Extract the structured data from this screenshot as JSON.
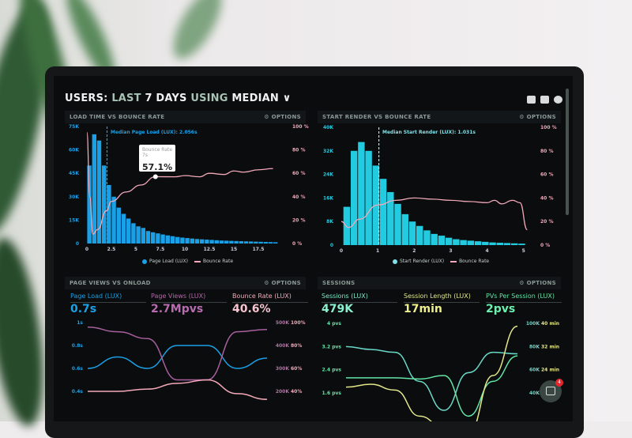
{
  "header": {
    "title_a": "USERS:",
    "title_b": "LAST",
    "title_c": "7 DAYS",
    "title_d": "USING",
    "title_e": "MEDIAN",
    "chevron": "chevron-down-icon",
    "icons": [
      "monitor-icon",
      "share-icon",
      "help-icon"
    ]
  },
  "colors": {
    "blue": "#1aa0e6",
    "cyan": "#23cbe0",
    "pink": "#f3a9b9",
    "purple": "#a8609e",
    "green": "#62e4a6",
    "yellow": "#e4e68a",
    "teal": "#6ad8c6"
  },
  "panels": [
    {
      "title": "LOAD TIME VS BOUNCE RATE",
      "options": "OPTIONS",
      "median": "Median Page Load (LUX): 2.056s",
      "tooltip": {
        "label": "Bounce Rate",
        "sub": "7s",
        "value": "57.1%"
      },
      "legend": [
        "Page Load (LUX)",
        "Bounce Rate"
      ]
    },
    {
      "title": "START RENDER VS BOUNCE RATE",
      "options": "OPTIONS",
      "median": "Median Start Render (LUX): 1.031s",
      "legend": [
        "Start Render (LUX)",
        "Bounce Rate"
      ]
    },
    {
      "title": "PAGE VIEWS VS ONLOAD",
      "options": "OPTIONS",
      "metrics": [
        {
          "label": "Page Load (LUX)",
          "value": "0.7s"
        },
        {
          "label": "Page Views (LUX)",
          "value": "2.7Mpvs"
        },
        {
          "label": "Bounce Rate (LUX)",
          "value": "40.6%"
        }
      ]
    },
    {
      "title": "SESSIONS",
      "options": "OPTIONS",
      "metrics": [
        {
          "label": "Sessions (LUX)",
          "value": "479K"
        },
        {
          "label": "Session Length (LUX)",
          "value": "17min"
        },
        {
          "label": "PVs Per Session (LUX)",
          "value": "2pvs"
        }
      ]
    }
  ],
  "chat": {
    "badge": "4"
  },
  "chart_data": [
    {
      "type": "bar",
      "title": "LOAD TIME VS BOUNCE RATE",
      "xlim": [
        0,
        20
      ],
      "ylim": [
        0,
        75000
      ],
      "y2lim": [
        0,
        100
      ],
      "xticks": [
        "0",
        "2.5",
        "5",
        "7.5",
        "10",
        "12.5",
        "15",
        "17.5"
      ],
      "yticks": [
        "0",
        "15K",
        "30K",
        "45K",
        "60K",
        "75K"
      ],
      "y2ticks": [
        "0 %",
        "20 %",
        "40 %",
        "60 %",
        "80 %",
        "100 %"
      ],
      "bar_width": 0.5,
      "series": [
        {
          "name": "Page Load (LUX)",
          "x_start": 0,
          "values": [
            50000,
            70000,
            66000,
            50000,
            37500,
            30000,
            23000,
            19000,
            16000,
            13000,
            11000,
            10000,
            8000,
            7200,
            6500,
            5800,
            5200,
            4700,
            4200,
            3800,
            3500,
            3200,
            2900,
            2700,
            2500,
            2300,
            2100,
            1900,
            1800,
            1700,
            1600,
            1500,
            1400,
            1300,
            1200,
            1100,
            1000,
            900,
            800
          ]
        },
        {
          "name": "Bounce Rate",
          "points": [
            [
              0,
              95
            ],
            [
              0.3,
              40
            ],
            [
              0.6,
              8
            ],
            [
              1.1,
              12
            ],
            [
              2,
              28
            ],
            [
              2.5,
              36
            ],
            [
              4,
              44
            ],
            [
              5.5,
              50
            ],
            [
              7,
              57.1
            ],
            [
              9,
              57
            ],
            [
              10,
              58
            ],
            [
              11.5,
              57
            ],
            [
              12.5,
              60
            ],
            [
              14,
              59
            ],
            [
              15,
              62
            ],
            [
              16,
              61
            ],
            [
              17.5,
              63
            ],
            [
              19,
              64
            ]
          ]
        }
      ],
      "annotation": {
        "median": 2.056
      }
    },
    {
      "type": "bar",
      "title": "START RENDER VS BOUNCE RATE",
      "xlim": [
        0,
        5.2
      ],
      "ylim": [
        0,
        40000
      ],
      "y2lim": [
        0,
        100
      ],
      "xticks": [
        "0",
        "1",
        "2",
        "3",
        "4",
        "5"
      ],
      "yticks": [
        "0",
        "8K",
        "16K",
        "24K",
        "32K",
        "40K"
      ],
      "y2ticks": [
        "0 %",
        "20 %",
        "40 %",
        "60 %",
        "80 %",
        "100 %"
      ],
      "bar_width": 0.2,
      "series": [
        {
          "name": "Start Render (LUX)",
          "x_start": 0.05,
          "values": [
            13000,
            32000,
            35000,
            32000,
            27000,
            22500,
            18000,
            14000,
            10500,
            8000,
            6500,
            5000,
            3800,
            3200,
            2500,
            2000,
            1700,
            1500,
            1300,
            1100,
            900,
            800,
            700,
            600,
            500
          ]
        },
        {
          "name": "Bounce Rate",
          "points": [
            [
              0,
              20
            ],
            [
              0.2,
              15
            ],
            [
              0.5,
              22
            ],
            [
              1,
              34
            ],
            [
              1.5,
              38
            ],
            [
              2,
              40
            ],
            [
              2.5,
              39
            ],
            [
              3,
              38
            ],
            [
              3.5,
              37
            ],
            [
              4,
              36
            ],
            [
              4.2,
              38
            ],
            [
              4.4,
              35
            ],
            [
              4.7,
              38
            ],
            [
              4.9,
              36
            ],
            [
              5.1,
              13
            ]
          ]
        }
      ],
      "annotation": {
        "median": 1.031
      }
    },
    {
      "type": "line",
      "title": "PAGE VIEWS VS ONLOAD",
      "ylim": [
        0.4,
        1
      ],
      "y2lim": [
        200000,
        500000
      ],
      "y3lim": [
        40,
        100
      ],
      "yticks": [
        "0.4s",
        "0.6s",
        "0.8s",
        "1s"
      ],
      "y2ticks": [
        "200K",
        "300K",
        "400K",
        "500K"
      ],
      "y3ticks": [
        "40%",
        "60%",
        "80%",
        "100%"
      ],
      "series": [
        {
          "name": "Page Load (LUX)",
          "axis": "y",
          "values": [
            0.6,
            0.7,
            0.6,
            0.8,
            0.8,
            0.6,
            0.69
          ]
        },
        {
          "name": "Page Views (LUX)",
          "axis": "y2",
          "values": [
            480000,
            460000,
            430000,
            250000,
            250000,
            460000,
            470000
          ]
        },
        {
          "name": "Bounce Rate (LUX)",
          "axis": "y3",
          "values": [
            40,
            40,
            42,
            47,
            50,
            38,
            33
          ]
        }
      ]
    },
    {
      "type": "line",
      "title": "SESSIONS",
      "ylim": [
        1.6,
        4
      ],
      "y2lim": [
        40000,
        100000
      ],
      "y3lim": [
        16,
        40
      ],
      "yticks": [
        "1.6 pvs",
        "2.4 pvs",
        "3.2 pvs",
        "4 pvs"
      ],
      "y2ticks": [
        "40K",
        "60K",
        "80K",
        "100K"
      ],
      "y3ticks": [
        "16 min",
        "24 min",
        "32 min",
        "40 min"
      ],
      "series": [
        {
          "name": "PVs Per Session (LUX)",
          "axis": "y",
          "values": [
            3.2,
            3.1,
            3.0,
            2.0,
            1.0,
            2.3,
            3.0,
            2.95
          ]
        },
        {
          "name": "Sessions (LUX)",
          "axis": "y2",
          "values": [
            53000,
            53000,
            53000,
            52000,
            55000,
            20000,
            50000,
            72000
          ]
        },
        {
          "name": "Session Length (LUX)",
          "axis": "y3",
          "values": [
            18,
            19,
            17,
            8,
            4,
            2,
            22,
            39
          ]
        }
      ]
    }
  ]
}
